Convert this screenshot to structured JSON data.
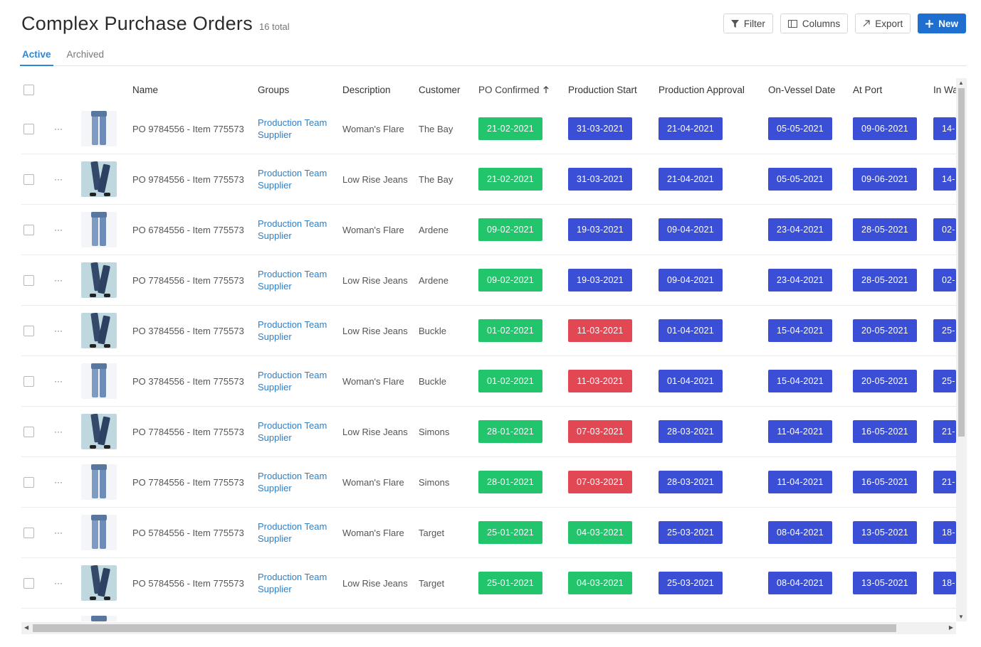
{
  "page": {
    "title": "Complex Purchase Orders",
    "count": "16 total"
  },
  "toolbar": {
    "filter_label": "Filter",
    "columns_label": "Columns",
    "export_label": "Export",
    "new_label": "New",
    "filter_icon": "funnel-icon",
    "columns_icon": "columns-icon",
    "export_icon": "export-arrow-icon",
    "new_icon": "plus-icon"
  },
  "tabs": [
    {
      "label": "Active",
      "active": true
    },
    {
      "label": "Archived",
      "active": false
    }
  ],
  "columns": [
    "Name",
    "Groups",
    "Description",
    "Customer",
    "PO Confirmed",
    "Production Start",
    "Production Approval",
    "On-Vessel Date",
    "At Port",
    "In Wa"
  ],
  "sort": {
    "column": "PO Confirmed",
    "direction": "ascending",
    "icon": "arrow-up-icon"
  },
  "status_colors": {
    "green": "#22c56b",
    "blue": "#3b4fd6",
    "red": "#e14854"
  },
  "rows": [
    {
      "image": "flare",
      "name": "PO 9784556 - Item 775573",
      "group_line1": "Production Team",
      "group_line2": "Supplier",
      "description": "Woman's Flare",
      "customer": "The Bay",
      "po_confirmed": "21-02-2021",
      "po_confirmed_status": "green",
      "production_start": "31-03-2021",
      "production_start_status": "blue",
      "production_approval": "21-04-2021",
      "on_vessel": "05-05-2021",
      "at_port": "09-06-2021",
      "in_wa": "14-"
    },
    {
      "image": "lowrise",
      "name": "PO 9784556 - Item 775573",
      "group_line1": "Production Team",
      "group_line2": "Supplier",
      "description": "Low Rise Jeans",
      "customer": "The Bay",
      "po_confirmed": "21-02-2021",
      "po_confirmed_status": "green",
      "production_start": "31-03-2021",
      "production_start_status": "blue",
      "production_approval": "21-04-2021",
      "on_vessel": "05-05-2021",
      "at_port": "09-06-2021",
      "in_wa": "14-"
    },
    {
      "image": "flare",
      "name": "PO 6784556 - Item 775573",
      "group_line1": "Production Team",
      "group_line2": "Supplier",
      "description": "Woman's Flare",
      "customer": "Ardene",
      "po_confirmed": "09-02-2021",
      "po_confirmed_status": "green",
      "production_start": "19-03-2021",
      "production_start_status": "blue",
      "production_approval": "09-04-2021",
      "on_vessel": "23-04-2021",
      "at_port": "28-05-2021",
      "in_wa": "02-"
    },
    {
      "image": "lowrise",
      "name": "PO 7784556 - Item 775573",
      "group_line1": "Production Team",
      "group_line2": "Supplier",
      "description": "Low Rise Jeans",
      "customer": "Ardene",
      "po_confirmed": "09-02-2021",
      "po_confirmed_status": "green",
      "production_start": "19-03-2021",
      "production_start_status": "blue",
      "production_approval": "09-04-2021",
      "on_vessel": "23-04-2021",
      "at_port": "28-05-2021",
      "in_wa": "02-"
    },
    {
      "image": "lowrise",
      "name": "PO 3784556 - Item 775573",
      "group_line1": "Production Team",
      "group_line2": "Supplier",
      "description": "Low Rise Jeans",
      "customer": "Buckle",
      "po_confirmed": "01-02-2021",
      "po_confirmed_status": "green",
      "production_start": "11-03-2021",
      "production_start_status": "red",
      "production_approval": "01-04-2021",
      "on_vessel": "15-04-2021",
      "at_port": "20-05-2021",
      "in_wa": "25-"
    },
    {
      "image": "flare",
      "name": "PO 3784556 - Item 775573",
      "group_line1": "Production Team",
      "group_line2": "Supplier",
      "description": "Woman's Flare",
      "customer": "Buckle",
      "po_confirmed": "01-02-2021",
      "po_confirmed_status": "green",
      "production_start": "11-03-2021",
      "production_start_status": "red",
      "production_approval": "01-04-2021",
      "on_vessel": "15-04-2021",
      "at_port": "20-05-2021",
      "in_wa": "25-"
    },
    {
      "image": "lowrise",
      "name": "PO 7784556 - Item 775573",
      "group_line1": "Production Team",
      "group_line2": "Supplier",
      "description": "Low Rise Jeans",
      "customer": "Simons",
      "po_confirmed": "28-01-2021",
      "po_confirmed_status": "green",
      "production_start": "07-03-2021",
      "production_start_status": "red",
      "production_approval": "28-03-2021",
      "on_vessel": "11-04-2021",
      "at_port": "16-05-2021",
      "in_wa": "21-"
    },
    {
      "image": "flare",
      "name": "PO 7784556 - Item 775573",
      "group_line1": "Production Team",
      "group_line2": "Supplier",
      "description": "Woman's Flare",
      "customer": "Simons",
      "po_confirmed": "28-01-2021",
      "po_confirmed_status": "green",
      "production_start": "07-03-2021",
      "production_start_status": "red",
      "production_approval": "28-03-2021",
      "on_vessel": "11-04-2021",
      "at_port": "16-05-2021",
      "in_wa": "21-"
    },
    {
      "image": "flare",
      "name": "PO 5784556 - Item 775573",
      "group_line1": "Production Team",
      "group_line2": "Supplier",
      "description": "Woman's Flare",
      "customer": "Target",
      "po_confirmed": "25-01-2021",
      "po_confirmed_status": "green",
      "production_start": "04-03-2021",
      "production_start_status": "green",
      "production_approval": "25-03-2021",
      "on_vessel": "08-04-2021",
      "at_port": "13-05-2021",
      "in_wa": "18-"
    },
    {
      "image": "lowrise",
      "name": "PO 5784556 - Item 775573",
      "group_line1": "Production Team",
      "group_line2": "Supplier",
      "description": "Low Rise Jeans",
      "customer": "Target",
      "po_confirmed": "25-01-2021",
      "po_confirmed_status": "green",
      "production_start": "04-03-2021",
      "production_start_status": "green",
      "production_approval": "25-03-2021",
      "on_vessel": "08-04-2021",
      "at_port": "13-05-2021",
      "in_wa": "18-"
    },
    {
      "image": "flare",
      "name": "",
      "group_line1": "",
      "group_line2": "",
      "description": "",
      "customer": "",
      "po_confirmed": "",
      "po_confirmed_status": "green",
      "production_start": "",
      "production_start_status": "green",
      "production_approval": "",
      "on_vessel": "",
      "at_port": "",
      "in_wa": ""
    }
  ]
}
